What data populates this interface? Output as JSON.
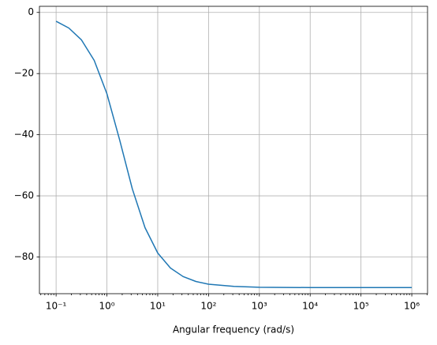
{
  "chart_data": {
    "type": "line",
    "xlabel": "Angular frequency (rad/s)",
    "x": [
      0.1,
      0.178,
      0.316,
      0.562,
      1,
      1.78,
      3.16,
      5.62,
      10,
      17.8,
      31.6,
      56.2,
      100,
      316,
      1000,
      10000,
      100000,
      1000000
    ],
    "series": [
      {
        "color": "#1f77b4",
        "values": [
          -2.9,
          -5.1,
          -9.0,
          -15.7,
          -26.6,
          -41.7,
          -57.7,
          -70.4,
          -78.7,
          -83.6,
          -86.4,
          -88.0,
          -88.9,
          -89.6,
          -89.9,
          -90.0,
          -90.0,
          -90.0
        ]
      }
    ],
    "xlog": true,
    "xlim": [
      0.047,
      2040000
    ],
    "ylim": [
      -92,
      2
    ],
    "xticks": [
      {
        "value": 0.1,
        "label": "10⁻¹"
      },
      {
        "value": 1,
        "label": "10⁰"
      },
      {
        "value": 10,
        "label": "10¹"
      },
      {
        "value": 100,
        "label": "10²"
      },
      {
        "value": 1000,
        "label": "10³"
      },
      {
        "value": 10000,
        "label": "10⁴"
      },
      {
        "value": 100000,
        "label": "10⁵"
      },
      {
        "value": 1000000,
        "label": "10⁶"
      }
    ],
    "yticks": [
      0,
      {
        "value": -20,
        "label": "−20"
      },
      {
        "value": -40,
        "label": "−40"
      },
      {
        "value": -60,
        "label": "−60"
      },
      {
        "value": -80,
        "label": "−80"
      }
    ],
    "grid": true
  }
}
